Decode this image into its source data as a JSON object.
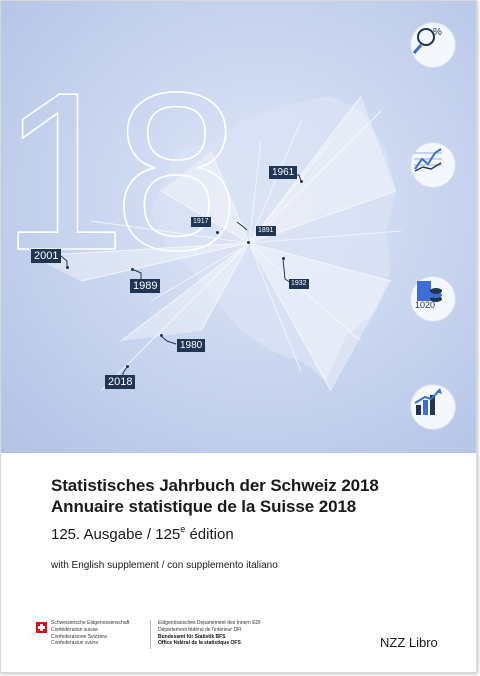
{
  "cover": {
    "big_number": "18",
    "years": [
      "1961",
      "1917",
      "1891",
      "2001",
      "1989",
      "1932",
      "1980",
      "2018"
    ],
    "icons": [
      "magnifier-percent-icon",
      "line-chart-icon",
      "coins-1020-icon",
      "rising-bar-chart-icon"
    ],
    "icon_text": "1020",
    "colors": {
      "artwork": "#c6d3ee",
      "label_bg": "#1f3553",
      "flag": "#e30613"
    }
  },
  "title": {
    "de": "Statistisches Jahrbuch der Schweiz 2018",
    "fr": "Annuaire statistique de la Suisse 2018",
    "edition_de": "125. Ausgabe / 125",
    "edition_sup": "e",
    "edition_fr": " édition",
    "supplement": "with English supplement / con supplemento italiano"
  },
  "footer": {
    "conf_de": "Schweizerische Eidgenossenschaft",
    "conf_fr": "Confédération suisse",
    "conf_it": "Confederazione Svizzera",
    "conf_rm": "Confederaziun svizra",
    "dept_de": "Eidgenössisches Departement des Innern EDI",
    "dept_fr": "Département fédéral de l'intérieur DFI",
    "office_de": "Bundesamt für Statistik BFS",
    "office_fr": "Office fédéral de la statistique OFS",
    "publisher": "NZZ Libro"
  }
}
